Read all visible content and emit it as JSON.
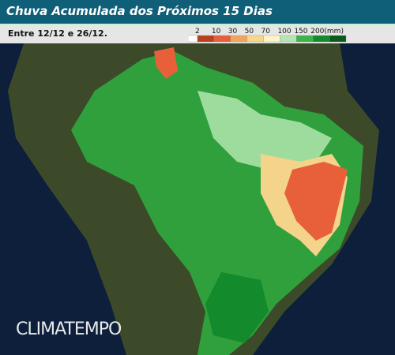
{
  "header": {
    "title": "Chuva Acumulada dos Próximos 15 Dias",
    "subtitle": "Entre 12/12 e 26/12."
  },
  "legend": {
    "labels": [
      "2",
      "10",
      "30",
      "50",
      "70",
      "100",
      "150",
      "200(mm)"
    ],
    "colors": [
      "#ffffff",
      "#b8401c",
      "#e8603a",
      "#f2a55a",
      "#f6d888",
      "#fff4c4",
      "#b4e6b4",
      "#3cb44a",
      "#138a2c",
      "#0a5a1c"
    ]
  },
  "watermark": "CLIMATEMPO"
}
